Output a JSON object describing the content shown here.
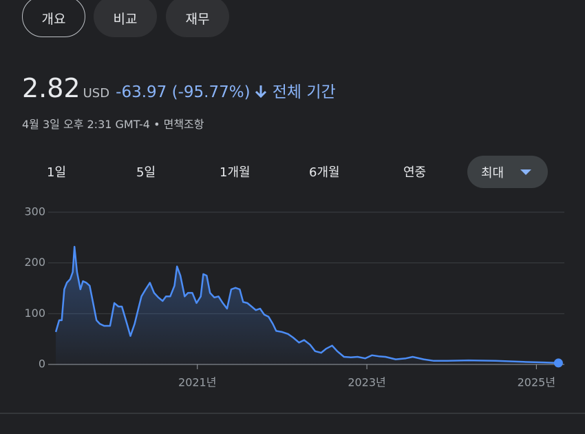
{
  "tabs": [
    "개요",
    "비교",
    "재무"
  ],
  "quote": {
    "price": "2.82",
    "currency": "USD",
    "change": "-63.97 (-95.77%)",
    "period": "전체 기간"
  },
  "timestamp": "4월 3일 오후 2:31 GMT-4",
  "disclaimer": "면책조항",
  "ranges": [
    "1일",
    "5일",
    "1개월",
    "6개월",
    "연중",
    "최대"
  ],
  "chart_data": {
    "type": "line",
    "color": "#4c8df6",
    "grid": true,
    "xlim": [
      2019.24,
      2025.33
    ],
    "xticks": [
      {
        "value": 2021,
        "label": "2021년"
      },
      {
        "value": 2023,
        "label": "2023년"
      },
      {
        "value": 2025,
        "label": "2025년"
      }
    ],
    "ylim": [
      0,
      300
    ],
    "yticks": [
      0,
      100,
      200,
      300
    ],
    "x": [
      2019.33,
      2019.37,
      2019.4,
      2019.43,
      2019.46,
      2019.5,
      2019.53,
      2019.55,
      2019.58,
      2019.62,
      2019.65,
      2019.69,
      2019.73,
      2019.77,
      2019.81,
      2019.85,
      2019.9,
      2019.97,
      2020.02,
      2020.07,
      2020.11,
      2020.17,
      2020.21,
      2020.26,
      2020.31,
      2020.34,
      2020.39,
      2020.44,
      2020.49,
      2020.54,
      2020.59,
      2020.63,
      2020.68,
      2020.73,
      2020.76,
      2020.8,
      2020.85,
      2020.89,
      2020.94,
      2020.99,
      2021.04,
      2021.07,
      2021.11,
      2021.15,
      2021.2,
      2021.25,
      2021.3,
      2021.35,
      2021.4,
      2021.45,
      2021.5,
      2021.54,
      2021.59,
      2021.64,
      2021.69,
      2021.74,
      2021.79,
      2021.84,
      2021.89,
      2021.93,
      2022.0,
      2022.07,
      2022.13,
      2022.2,
      2022.26,
      2022.33,
      2022.39,
      2022.46,
      2022.52,
      2022.59,
      2022.65,
      2022.73,
      2022.81,
      2022.89,
      2022.98,
      2023.06,
      2023.14,
      2023.22,
      2023.34,
      2023.46,
      2023.54,
      2023.67,
      2023.79,
      2023.95,
      2024.2,
      2024.52,
      2024.85,
      2025.09,
      2025.26
    ],
    "values": [
      64,
      87,
      87,
      148,
      161,
      168,
      182,
      232,
      182,
      148,
      164,
      161,
      155,
      121,
      87,
      80,
      76,
      76,
      121,
      114,
      114,
      80,
      56,
      80,
      114,
      134,
      148,
      161,
      141,
      132,
      125,
      134,
      134,
      155,
      193,
      175,
      134,
      141,
      141,
      121,
      134,
      178,
      175,
      141,
      132,
      134,
      121,
      110,
      148,
      151,
      148,
      123,
      121,
      114,
      107,
      110,
      98,
      94,
      80,
      66,
      64,
      60,
      53,
      43,
      48,
      39,
      26,
      23,
      31,
      37,
      26,
      15,
      14,
      15,
      12,
      18,
      16,
      15,
      10,
      12,
      15,
      10,
      7,
      7,
      8,
      7,
      5,
      4,
      2.82
    ]
  }
}
